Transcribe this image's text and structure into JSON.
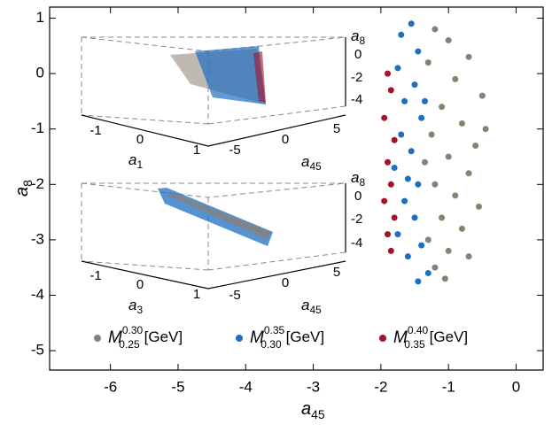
{
  "chart_data": {
    "type": "scatter",
    "x_label": {
      "base": "a",
      "sub": "45"
    },
    "y_label": {
      "base": "a",
      "sub": "8"
    },
    "xlim": [
      -6.9,
      0.4
    ],
    "ylim": [
      -5.35,
      1.2
    ],
    "xticks": [
      -6,
      -5,
      -4,
      -3,
      -2,
      -1,
      0
    ],
    "yticks": [
      1,
      0,
      -1,
      -2,
      -3,
      -4,
      -5
    ],
    "series": [
      {
        "name": "M",
        "superscript": "0.30",
        "subscript": "0.25",
        "unit": "[GeV]",
        "color": "#8c7f72",
        "x": [
          -1.2,
          -1.0,
          -0.7,
          -1.3,
          -0.9,
          -0.5,
          -1.1,
          -0.8,
          -1.25,
          -0.6,
          -1.0,
          -0.7,
          -1.2,
          -0.9,
          -0.55,
          -1.1,
          -0.8,
          -1.3,
          -1.0,
          -0.7,
          -1.2,
          -1.05,
          -0.45,
          -1.35
        ],
        "values": [
          0.8,
          0.6,
          0.3,
          0.2,
          -0.1,
          -0.4,
          -0.6,
          -0.9,
          -1.1,
          -1.3,
          -1.5,
          -1.8,
          -2.0,
          -2.2,
          -2.4,
          -2.6,
          -2.8,
          -3.0,
          -3.2,
          -3.3,
          -3.5,
          -3.7,
          -1.0,
          -1.6
        ]
      },
      {
        "name": "M",
        "superscript": "0.35",
        "subscript": "0.30",
        "unit": "[GeV]",
        "color": "#1f6fc0",
        "x": [
          -1.7,
          -1.55,
          -1.45,
          -1.75,
          -1.5,
          -1.65,
          -1.4,
          -1.7,
          -1.55,
          -1.8,
          -1.45,
          -1.65,
          -1.5,
          -1.75,
          -1.4,
          -1.6,
          -1.3,
          -1.45,
          -1.35,
          -1.6
        ],
        "values": [
          0.7,
          0.9,
          0.4,
          0.1,
          -0.2,
          -0.5,
          -0.8,
          -1.1,
          -1.4,
          -1.7,
          -2.0,
          -2.3,
          -2.6,
          -2.9,
          -3.1,
          -3.3,
          -3.6,
          -3.75,
          -0.5,
          -1.9
        ]
      },
      {
        "name": "M",
        "superscript": "0.40",
        "subscript": "0.35",
        "unit": "[GeV]",
        "color": "#a3132a",
        "x": [
          -1.9,
          -1.85,
          -1.95,
          -1.8,
          -1.9,
          -1.85,
          -1.95,
          -1.8,
          -1.9,
          -1.85
        ],
        "values": [
          0.0,
          -0.3,
          -0.8,
          -1.2,
          -1.6,
          -2.0,
          -2.3,
          -2.6,
          -2.9,
          -3.2
        ]
      }
    ],
    "insets": [
      {
        "x_axis_label": {
          "base": "a",
          "sub": "1"
        },
        "x_ticks": [
          -1,
          0,
          1
        ],
        "y_axis_label": {
          "base": "a",
          "sub": "45"
        },
        "y_ticks": [
          -5,
          0,
          5
        ],
        "z_axis_label": {
          "base": "a",
          "sub": "8"
        },
        "z_ticks": [
          0,
          -2,
          -4
        ]
      },
      {
        "x_axis_label": {
          "base": "a",
          "sub": "3"
        },
        "x_ticks": [
          -1,
          0,
          1
        ],
        "y_axis_label": {
          "base": "a",
          "sub": "45"
        },
        "y_ticks": [
          -5,
          0,
          5
        ],
        "z_axis_label": {
          "base": "a",
          "sub": "8"
        },
        "z_ticks": [
          0,
          -2,
          -4
        ]
      }
    ]
  }
}
